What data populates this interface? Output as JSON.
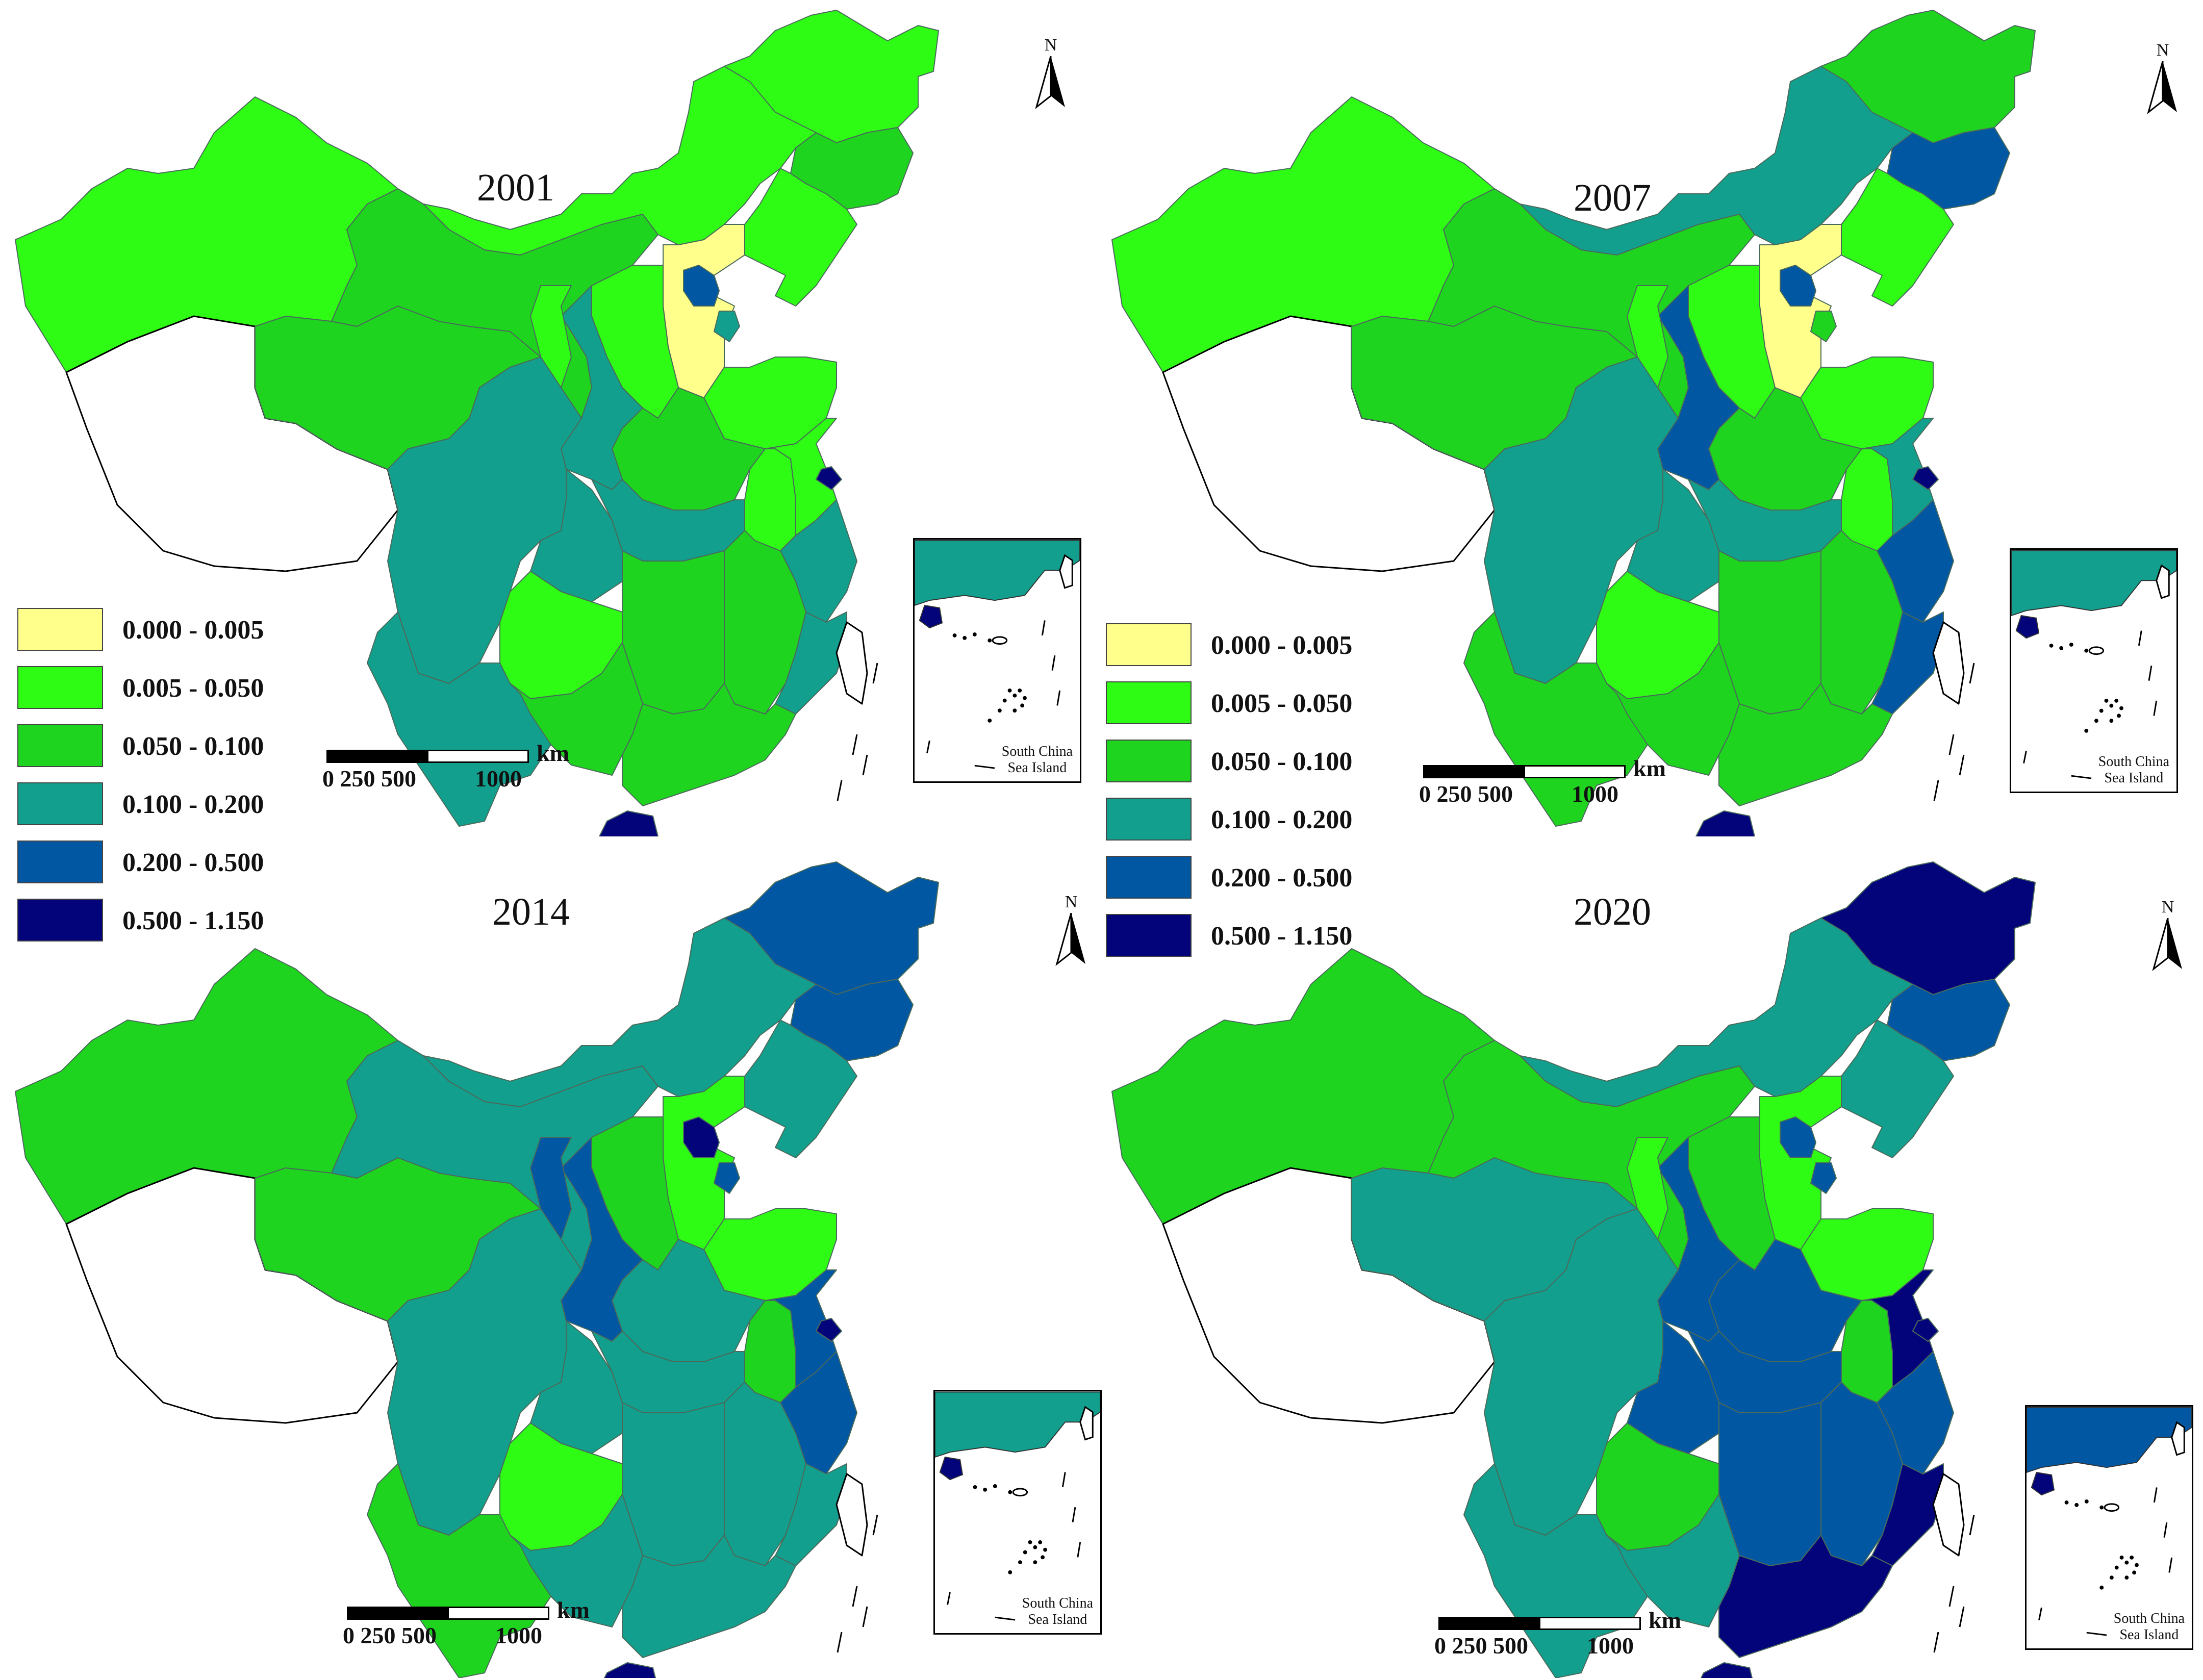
{
  "classes": [
    {
      "label": "0.000 - 0.005",
      "color": "#ffff8c"
    },
    {
      "label": "0.005 - 0.050",
      "color": "#2efc14"
    },
    {
      "label": "0.050 - 0.100",
      "color": "#1fd41f"
    },
    {
      "label": "0.100 - 0.200",
      "color": "#139f8e"
    },
    {
      "label": "0.200 - 0.500",
      "color": "#0257a2"
    },
    {
      "label": "0.500 - 1.150",
      "color": "#03047a"
    }
  ],
  "panels": [
    {
      "year": "2001",
      "regions": {
        "xinjiang": 1,
        "tibet": -1,
        "qinghai": 2,
        "gansu": 2,
        "imongolia": 1,
        "heilongjiang": 1,
        "jilin": 2,
        "liaoning": 1,
        "hebei": 0,
        "beijing": 4,
        "tianjin": 3,
        "shanxi": 1,
        "shandong": 1,
        "henan": 2,
        "shaanxi": 3,
        "ningxia": 1,
        "sichuan": 3,
        "chongqing": 3,
        "yunnan": 3,
        "guizhou": 1,
        "hubei": 3,
        "hunan": 2,
        "jiangxi": 2,
        "anhui": 1,
        "jiangsu": 1,
        "shanghai": 5,
        "zhejiang": 3,
        "fujian": 3,
        "guangdong": 2,
        "guangxi": 2,
        "hainan": 5,
        "taiwan": -1,
        "inset_mainland": 3
      }
    },
    {
      "year": "2007",
      "regions": {
        "xinjiang": 1,
        "tibet": -1,
        "qinghai": 2,
        "gansu": 2,
        "imongolia": 3,
        "heilongjiang": 2,
        "jilin": 4,
        "liaoning": 1,
        "hebei": 0,
        "beijing": 4,
        "tianjin": 2,
        "shanxi": 1,
        "shandong": 1,
        "henan": 2,
        "shaanxi": 4,
        "ningxia": 1,
        "sichuan": 3,
        "chongqing": 3,
        "yunnan": 2,
        "guizhou": 1,
        "hubei": 3,
        "hunan": 2,
        "jiangxi": 2,
        "anhui": 1,
        "jiangsu": 3,
        "shanghai": 5,
        "zhejiang": 4,
        "fujian": 4,
        "guangdong": 2,
        "guangxi": 2,
        "hainan": 5,
        "taiwan": -1,
        "inset_mainland": 3
      }
    },
    {
      "year": "2014",
      "regions": {
        "xinjiang": 2,
        "tibet": -1,
        "qinghai": 2,
        "gansu": 3,
        "imongolia": 3,
        "heilongjiang": 4,
        "jilin": 4,
        "liaoning": 3,
        "hebei": 1,
        "beijing": 5,
        "tianjin": 4,
        "shanxi": 2,
        "shandong": 1,
        "henan": 3,
        "shaanxi": 4,
        "ningxia": 4,
        "sichuan": 3,
        "chongqing": 3,
        "yunnan": 2,
        "guizhou": 1,
        "hubei": 3,
        "hunan": 3,
        "jiangxi": 3,
        "anhui": 2,
        "jiangsu": 4,
        "shanghai": 5,
        "zhejiang": 4,
        "fujian": 3,
        "guangdong": 3,
        "guangxi": 3,
        "hainan": 5,
        "taiwan": -1,
        "inset_mainland": 3
      }
    },
    {
      "year": "2020",
      "regions": {
        "xinjiang": 2,
        "tibet": -1,
        "qinghai": 3,
        "gansu": 2,
        "imongolia": 3,
        "heilongjiang": 5,
        "jilin": 4,
        "liaoning": 3,
        "hebei": 1,
        "beijing": 4,
        "tianjin": 4,
        "shanxi": 2,
        "shandong": 1,
        "henan": 4,
        "shaanxi": 4,
        "ningxia": 1,
        "sichuan": 3,
        "chongqing": 4,
        "yunnan": 3,
        "guizhou": 2,
        "hubei": 4,
        "hunan": 4,
        "jiangxi": 4,
        "anhui": 2,
        "jiangsu": 5,
        "shanghai": 5,
        "zhejiang": 4,
        "fujian": 5,
        "guangdong": 5,
        "guangxi": 3,
        "hainan": 5,
        "taiwan": -1,
        "inset_mainland": 4
      }
    }
  ],
  "map_labels": {
    "north": "N",
    "scale_ticks": "0 250 500          1000",
    "scale_unit": "km",
    "inset_caption_line1": "South China",
    "inset_caption_line2": "Sea Island"
  }
}
